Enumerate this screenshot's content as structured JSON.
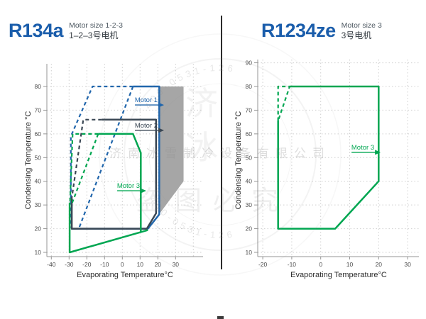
{
  "panels": [
    {
      "title": "R134a",
      "subtitle_en": "Motor size 1-2-3",
      "subtitle_zh": "1–2–3号电机"
    },
    {
      "title": "R1234ze",
      "subtitle_en": "Motor size 3",
      "subtitle_zh": "3号电机"
    }
  ],
  "watermark": {
    "company": "济南冰雪制冷设备有限公司",
    "phone": "400-0531-126",
    "notice": "盗图必究",
    "big_chars": "济冰",
    "color": "#8a8a8a"
  },
  "colors": {
    "motor1_blue": "#2166ac",
    "motor2_navy": "#3a4754",
    "motor3_green": "#00a651",
    "shaded_gray": "#a6a6a6",
    "title_blue": "#1a5dab"
  },
  "chart_data": [
    {
      "type": "line",
      "title": "R134a operating envelope",
      "xlabel": "Evaporating Temperature°C",
      "ylabel": "Condensing Temperature °C",
      "xlim": [
        -42.5,
        45.5
      ],
      "ylim": [
        8,
        89.5
      ],
      "xticks": [
        -40,
        -30,
        -20,
        -10,
        0,
        10,
        20,
        30
      ],
      "yticks": [
        10,
        20,
        30,
        40,
        50,
        60,
        70,
        80
      ],
      "grid": true,
      "legend_position": "none",
      "shaded_region": {
        "name": "restricted-zone",
        "color": "#a6a6a6",
        "points": [
          [
            21,
            80
          ],
          [
            34.5,
            80
          ],
          [
            34.5,
            40
          ],
          [
            15,
            20.3
          ],
          [
            20.8,
            26
          ],
          [
            20.8,
            80
          ]
        ]
      },
      "series": [
        {
          "name": "motor-1-envelope-solid",
          "color": "#2166ac",
          "style": "solid",
          "points": [
            [
              6,
              80
            ],
            [
              20.8,
              80
            ],
            [
              20.8,
              26
            ],
            [
              14.4,
              20
            ],
            [
              -28.8,
              20
            ]
          ]
        },
        {
          "name": "motor-1-extended-dashed",
          "color": "#2166ac",
          "style": "dashed",
          "points": [
            [
              6,
              80
            ],
            [
              -16.8,
              80
            ],
            [
              -29,
              59
            ],
            [
              -29,
              20.5
            ]
          ]
        },
        {
          "name": "motor-1-inner-boundary-dashed",
          "color": "#2166ac",
          "style": "dashed",
          "points": [
            [
              6,
              80
            ],
            [
              -24.3,
              20.5
            ]
          ]
        },
        {
          "name": "motor-2-envelope-solid",
          "color": "#3a4754",
          "style": "solid",
          "points": [
            [
              -11.6,
              66
            ],
            [
              19,
              66
            ],
            [
              19,
              26.5
            ],
            [
              13.8,
              20
            ],
            [
              -28.5,
              20
            ],
            [
              -28.5,
              33
            ]
          ]
        },
        {
          "name": "motor-2-extended-dashed",
          "color": "#3a4754",
          "style": "dashed",
          "points": [
            [
              -11.6,
              66
            ],
            [
              -22,
              66
            ],
            [
              -28.5,
              33
            ]
          ]
        },
        {
          "name": "motor-3-envelope-solid",
          "color": "#00a651",
          "style": "solid",
          "points": [
            [
              -13.6,
              60
            ],
            [
              6,
              60
            ],
            [
              10.4,
              52
            ],
            [
              10.4,
              18.6
            ]
          ]
        },
        {
          "name": "motor-3-lower-boundary-solid",
          "color": "#00a651",
          "style": "solid",
          "points": [
            [
              -29.7,
              31
            ],
            [
              -29.7,
              10
            ],
            [
              14.4,
              19.4
            ]
          ]
        },
        {
          "name": "motor-3-extended-dashed",
          "color": "#00a651",
          "style": "dashed",
          "points": [
            [
              -13.6,
              60
            ],
            [
              -28,
              60
            ],
            [
              -29.5,
              31
            ]
          ]
        },
        {
          "name": "motor-3-inner-boundary-dashed",
          "color": "#00a651",
          "style": "dashed",
          "points": [
            [
              -13.6,
              60
            ],
            [
              -28.2,
              31
            ]
          ]
        }
      ],
      "labels": [
        {
          "text": "Motor 1",
          "color": "#2166ac",
          "tip_x": 22.7,
          "tip_y": 72.2
        },
        {
          "text": "Motor 2",
          "color": "#3a4754",
          "tip_x": 22.7,
          "tip_y": 61.5
        },
        {
          "text": "Motor 3",
          "color": "#00a651",
          "tip_x": 12.7,
          "tip_y": 36.0
        }
      ]
    },
    {
      "type": "line",
      "title": "R1234ze operating envelope",
      "xlabel": "Evaporating Temperature°C",
      "ylabel": "Condensing Temperature °C",
      "xlim": [
        -21.7,
        34
      ],
      "ylim": [
        8,
        91.5
      ],
      "xticks": [
        -20,
        -10,
        0,
        10,
        20,
        30
      ],
      "yticks": [
        10,
        20,
        30,
        40,
        50,
        60,
        70,
        80,
        90
      ],
      "grid": true,
      "legend_position": "none",
      "series": [
        {
          "name": "motor-3-envelope-solid",
          "color": "#00a651",
          "style": "solid",
          "points": [
            [
              -10.7,
              80
            ],
            [
              20,
              80
            ],
            [
              20,
              40
            ],
            [
              5,
              20
            ],
            [
              -14.7,
              20
            ],
            [
              -14.7,
              65.5
            ]
          ]
        },
        {
          "name": "motor-3-extended-dashed",
          "color": "#00a651",
          "style": "dashed",
          "points": [
            [
              -14.7,
              65.5
            ],
            [
              -14.7,
              80
            ],
            [
              -10.7,
              80
            ],
            [
              -14.7,
              65.5
            ]
          ]
        }
      ],
      "labels": [
        {
          "text": "Motor 3",
          "color": "#00a651",
          "tip_x": 20.2,
          "tip_y": 52.2
        }
      ]
    }
  ]
}
